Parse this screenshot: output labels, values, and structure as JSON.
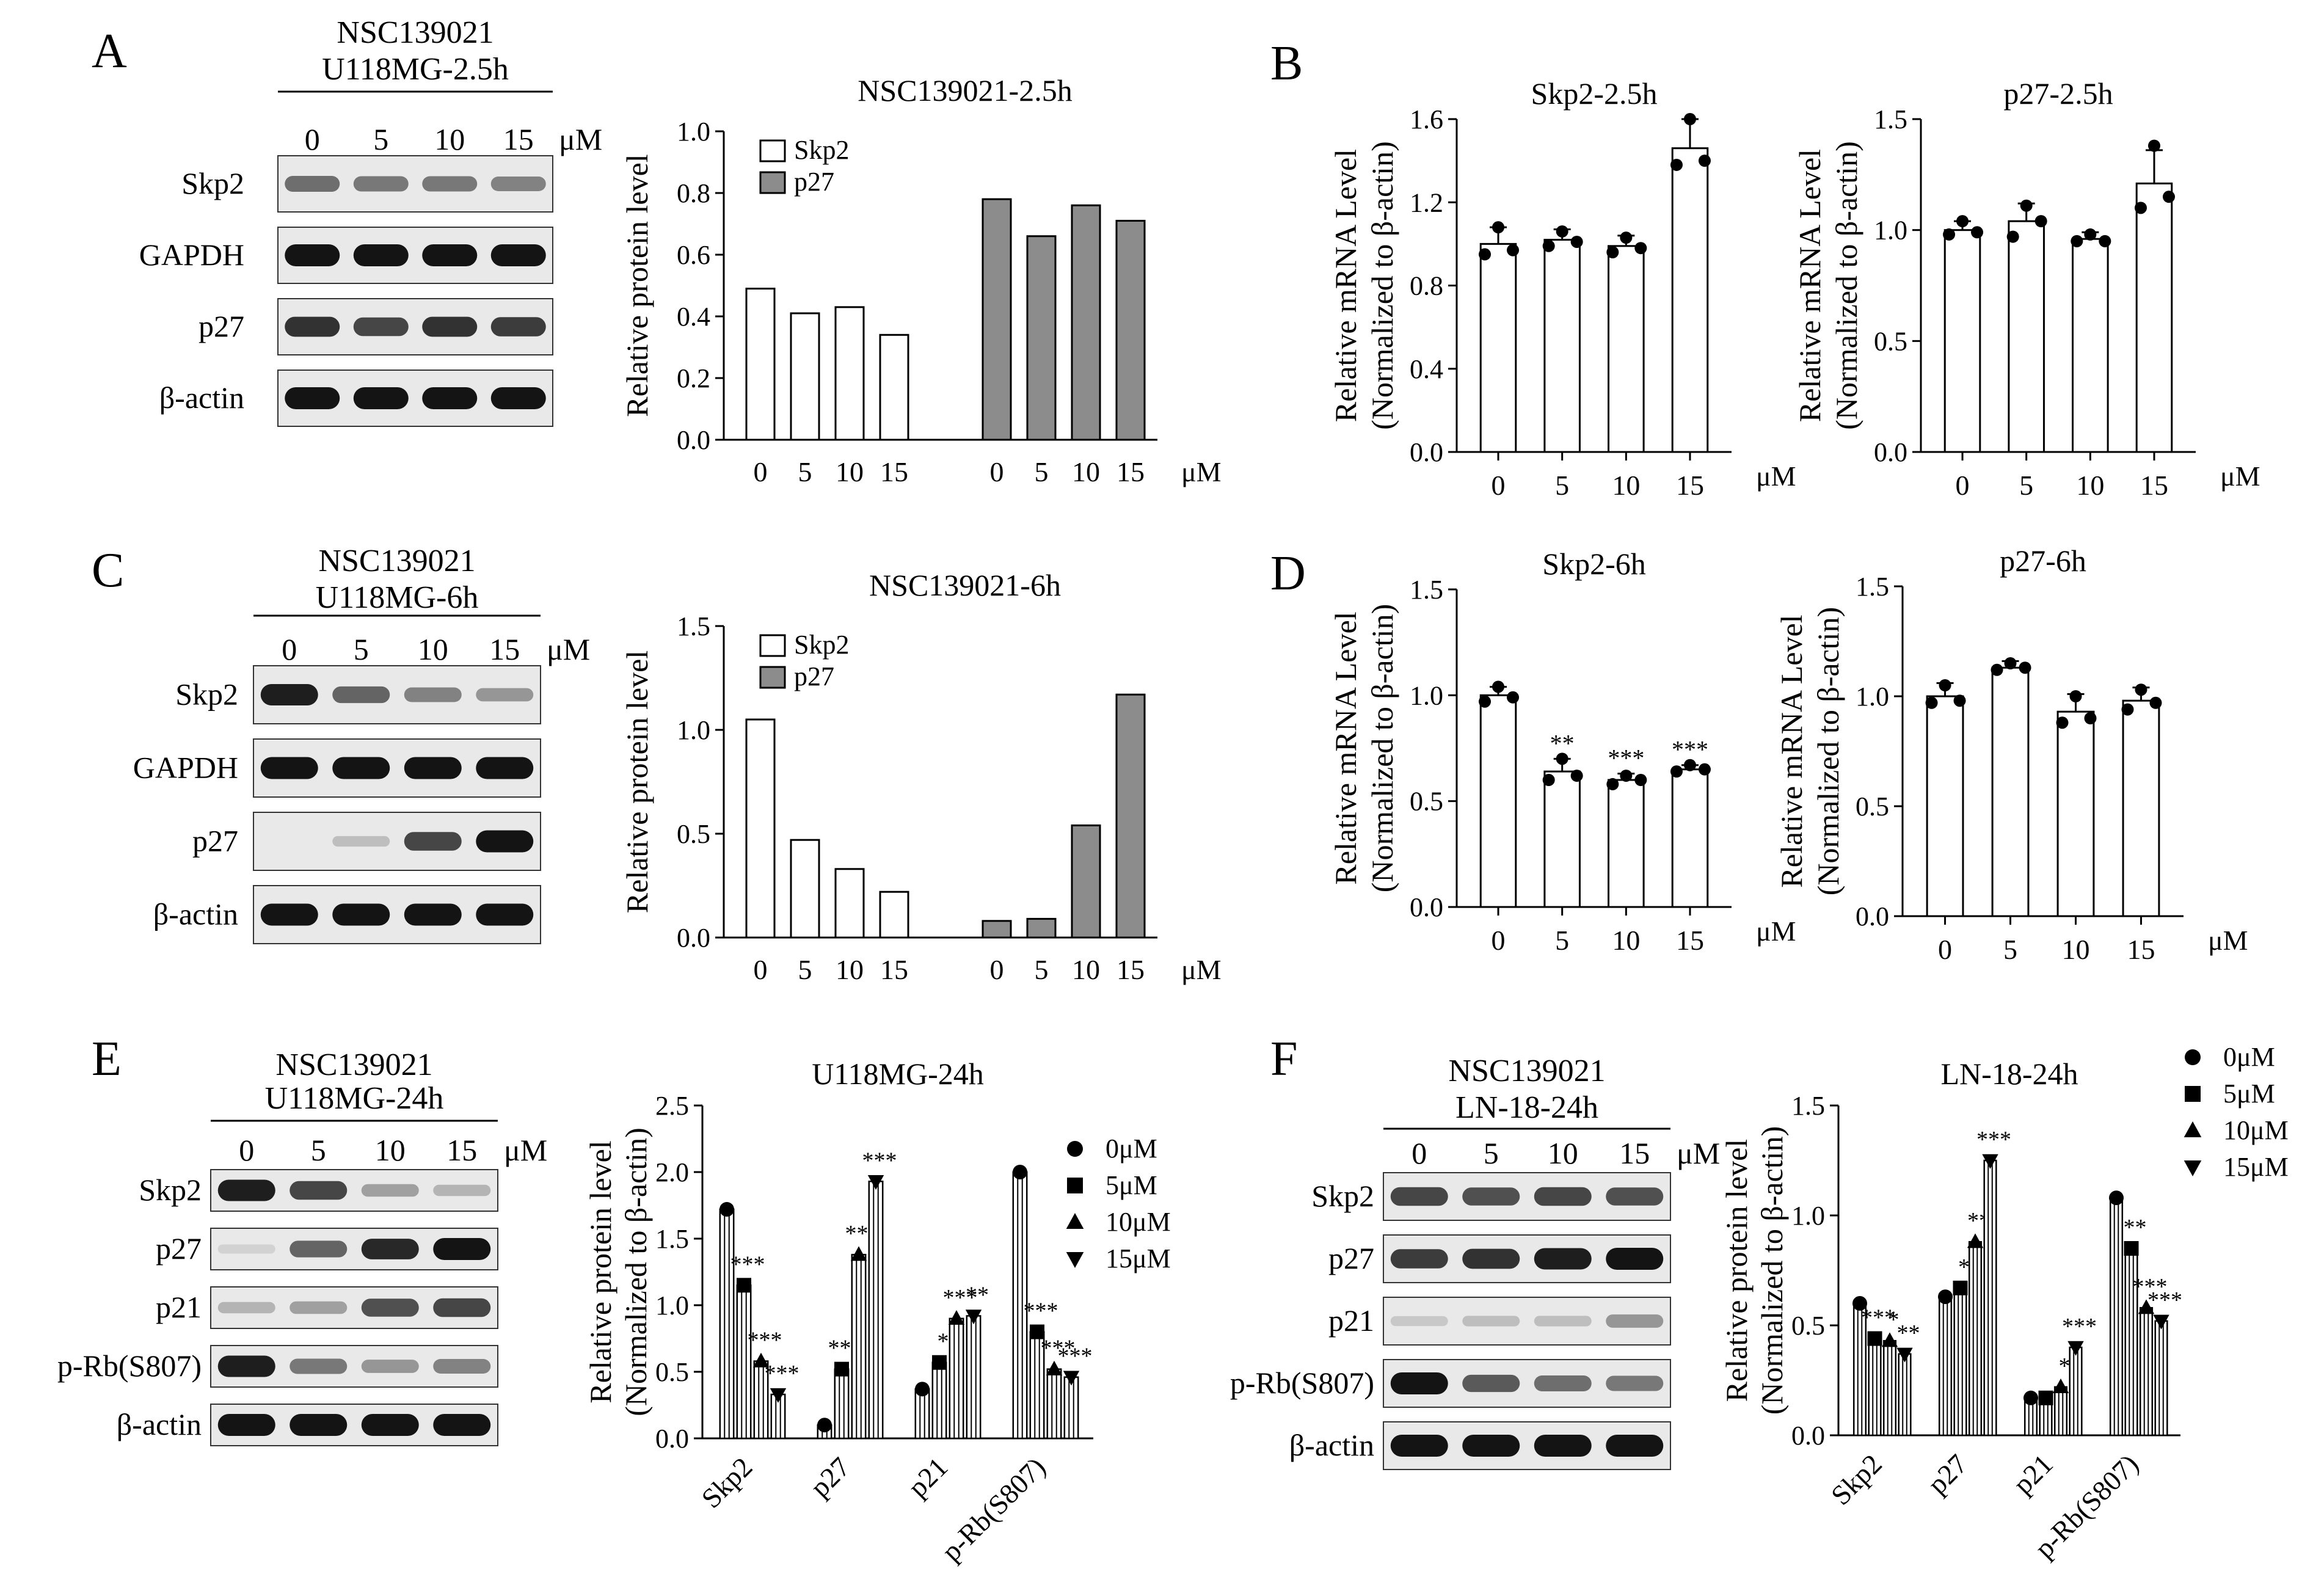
{
  "panel_letters": [
    "A",
    "B",
    "C",
    "D",
    "E",
    "F"
  ],
  "blots": [
    {
      "treatment": "NSC139021",
      "cell": "U118MG-2.5h",
      "doses": [
        "0",
        "5",
        "10",
        "15"
      ],
      "unit": "μM",
      "rows": [
        "Skp2",
        "GAPDH",
        "p27",
        "β-actin"
      ]
    },
    {
      "treatment": "NSC139021",
      "cell": "U118MG-6h",
      "doses": [
        "0",
        "5",
        "10",
        "15"
      ],
      "unit": "μM",
      "rows": [
        "Skp2",
        "GAPDH",
        "p27",
        "β-actin"
      ]
    },
    {
      "treatment": "NSC139021",
      "cell": "U118MG-24h",
      "doses": [
        "0",
        "5",
        "10",
        "15"
      ],
      "unit": "μM",
      "rows": [
        "Skp2",
        "p27",
        "p21",
        "p-Rb(S807)",
        "β-actin"
      ]
    },
    {
      "treatment": "NSC139021",
      "cell": "LN-18-24h",
      "doses": [
        "0",
        "5",
        "10",
        "15"
      ],
      "unit": "μM",
      "rows": [
        "Skp2",
        "p27",
        "p21",
        "p-Rb(S807)",
        "β-actin"
      ]
    }
  ],
  "chart_data": [
    {
      "id": "A-chart",
      "type": "bar",
      "title": "NSC139021-2.5h",
      "ylabel": "Relative protein level",
      "ylim": [
        0,
        1.0
      ],
      "yticks": [
        "0.0",
        "0.2",
        "0.4",
        "0.6",
        "0.8",
        "1.0"
      ],
      "xunit": "μM",
      "categories": [
        "0",
        "5",
        "10",
        "15"
      ],
      "legend": {
        "position": "top-left",
        "entries": [
          {
            "name": "Skp2",
            "color": "#ffffff"
          },
          {
            "name": "p27",
            "color": "#8c8c8c"
          }
        ]
      },
      "series": [
        {
          "name": "Skp2",
          "color": "#ffffff",
          "values": [
            0.49,
            0.41,
            0.43,
            0.34
          ]
        },
        {
          "name": "p27",
          "color": "#8c8c8c",
          "values": [
            0.78,
            0.66,
            0.76,
            0.71
          ]
        }
      ]
    },
    {
      "id": "B-skp2",
      "type": "bar",
      "title": "Skp2-2.5h",
      "ylabel": "Relative mRNA Level",
      "ylabel2": "(Normalized to β-actin)",
      "ylim": [
        0,
        1.6
      ],
      "yticks": [
        "0.0",
        "0.4",
        "0.8",
        "1.2",
        "1.6"
      ],
      "xunit": "μM",
      "categories": [
        "0",
        "5",
        "10",
        "15"
      ],
      "values": [
        1.0,
        1.02,
        0.99,
        1.46
      ],
      "errors": [
        0.08,
        0.05,
        0.05,
        0.14
      ],
      "points": [
        [
          1.08,
          0.95,
          0.97
        ],
        [
          1.06,
          0.99,
          1.01
        ],
        [
          1.03,
          0.96,
          0.98
        ],
        [
          1.6,
          1.38,
          1.4
        ]
      ],
      "stars": [
        "",
        "",
        "",
        ""
      ]
    },
    {
      "id": "B-p27",
      "type": "bar",
      "title": "p27-2.5h",
      "ylabel": "Relative mRNA Level",
      "ylabel2": "(Normalized to β-actin)",
      "ylim": [
        0,
        1.5
      ],
      "yticks": [
        "0.0",
        "0.5",
        "1.0",
        "1.5"
      ],
      "xunit": "μM",
      "categories": [
        "0",
        "5",
        "10",
        "15"
      ],
      "values": [
        1.0,
        1.04,
        0.96,
        1.21
      ],
      "errors": [
        0.04,
        0.08,
        0.03,
        0.15
      ],
      "points": [
        [
          1.04,
          0.98,
          0.99
        ],
        [
          1.11,
          0.97,
          1.04
        ],
        [
          0.98,
          0.95,
          0.95
        ],
        [
          1.38,
          1.1,
          1.15
        ]
      ],
      "stars": [
        "",
        "",
        "",
        ""
      ]
    },
    {
      "id": "C-chart",
      "type": "bar",
      "title": "NSC139021-6h",
      "ylabel": "Relative protein level",
      "ylim": [
        0,
        1.5
      ],
      "yticks": [
        "0.0",
        "0.5",
        "1.0",
        "1.5"
      ],
      "xunit": "μM",
      "categories": [
        "0",
        "5",
        "10",
        "15"
      ],
      "legend": {
        "position": "top-left",
        "entries": [
          {
            "name": "Skp2",
            "color": "#ffffff"
          },
          {
            "name": "p27",
            "color": "#8c8c8c"
          }
        ]
      },
      "series": [
        {
          "name": "Skp2",
          "color": "#ffffff",
          "values": [
            1.05,
            0.47,
            0.33,
            0.22
          ]
        },
        {
          "name": "p27",
          "color": "#8c8c8c",
          "values": [
            0.08,
            0.09,
            0.54,
            1.17
          ]
        }
      ]
    },
    {
      "id": "D-skp2",
      "type": "bar",
      "title": "Skp2-6h",
      "ylabel": "Relative mRNA Level",
      "ylabel2": "(Normalized to β-actin)",
      "ylim": [
        0,
        1.5
      ],
      "yticks": [
        "0.0",
        "0.5",
        "1.0",
        "1.5"
      ],
      "xunit": "μM",
      "categories": [
        "0",
        "5",
        "10",
        "15"
      ],
      "values": [
        1.0,
        0.64,
        0.6,
        0.65
      ],
      "errors": [
        0.04,
        0.06,
        0.03,
        0.02
      ],
      "points": [
        [
          1.04,
          0.97,
          0.99
        ],
        [
          0.7,
          0.6,
          0.62
        ],
        [
          0.62,
          0.58,
          0.6
        ],
        [
          0.67,
          0.64,
          0.65
        ]
      ],
      "stars": [
        "",
        "**",
        "***",
        "***"
      ]
    },
    {
      "id": "D-p27",
      "type": "bar",
      "title": "p27-6h",
      "ylabel": "Relative mRNA Level",
      "ylabel2": "(Normalized to β-actin)",
      "ylim": [
        0,
        1.5
      ],
      "yticks": [
        "0.0",
        "0.5",
        "1.0",
        "1.5"
      ],
      "xunit": "μM",
      "categories": [
        "0",
        "5",
        "10",
        "15"
      ],
      "values": [
        1.0,
        1.13,
        0.93,
        0.98
      ],
      "errors": [
        0.06,
        0.03,
        0.08,
        0.06
      ],
      "points": [
        [
          1.05,
          0.97,
          0.98
        ],
        [
          1.15,
          1.12,
          1.13
        ],
        [
          1.0,
          0.88,
          0.9
        ],
        [
          1.03,
          0.94,
          0.97
        ]
      ],
      "stars": [
        "",
        "",
        "",
        ""
      ]
    },
    {
      "id": "E-chart",
      "type": "bar",
      "title": "U118MG-24h",
      "ylabel": "Relative protein level",
      "ylabel2": "(Normalized to β-actin)",
      "ylim": [
        0,
        2.5
      ],
      "yticks": [
        "0.0",
        "0.5",
        "1.0",
        "1.5",
        "2.0",
        "2.5"
      ],
      "categories": [
        "Skp2",
        "p27",
        "p21",
        "p-Rb(S807)"
      ],
      "legend": {
        "position": "top-right",
        "entries": [
          {
            "name": "0μM",
            "marker": "circle"
          },
          {
            "name": "5μM",
            "marker": "square"
          },
          {
            "name": "10μM",
            "marker": "triangle-up"
          },
          {
            "name": "15μM",
            "marker": "triangle-down"
          }
        ]
      },
      "series": [
        {
          "name": "0μM",
          "values": [
            1.72,
            0.1,
            0.37,
            2.0
          ],
          "stars": [
            "",
            "",
            "",
            ""
          ]
        },
        {
          "name": "5μM",
          "values": [
            1.15,
            0.52,
            0.57,
            0.8
          ],
          "stars": [
            "***",
            "***",
            "*",
            "***"
          ]
        },
        {
          "name": "10μM",
          "values": [
            0.58,
            1.38,
            0.9,
            0.52
          ],
          "stars": [
            "***",
            "***",
            "***",
            "***"
          ]
        },
        {
          "name": "15μM",
          "values": [
            0.33,
            1.93,
            0.92,
            0.46
          ],
          "stars": [
            "***",
            "***",
            "**",
            "***"
          ]
        }
      ]
    },
    {
      "id": "F-chart",
      "type": "bar",
      "title": "LN-18-24h",
      "ylabel": "Relative protein level",
      "ylabel2": "(Normalized to β-actin)",
      "ylim": [
        0,
        1.5
      ],
      "yticks": [
        "0.0",
        "0.5",
        "1.0",
        "1.5"
      ],
      "categories": [
        "Skp2",
        "p27",
        "p21",
        "p-Rb(S807)"
      ],
      "legend": {
        "position": "top-right",
        "entries": [
          {
            "name": "0μM",
            "marker": "circle"
          },
          {
            "name": "5μM",
            "marker": "square"
          },
          {
            "name": "10μM",
            "marker": "triangle-up"
          },
          {
            "name": "15μM",
            "marker": "triangle-down"
          }
        ]
      },
      "series": [
        {
          "name": "0μM",
          "values": [
            0.6,
            0.63,
            0.17,
            1.08
          ],
          "stars": [
            "",
            "",
            "",
            ""
          ]
        },
        {
          "name": "5μM",
          "values": [
            0.44,
            0.67,
            0.17,
            0.85
          ],
          "stars": [
            "***",
            "*",
            "",
            "**"
          ]
        },
        {
          "name": "10μM",
          "values": [
            0.43,
            0.88,
            0.22,
            0.58
          ],
          "stars": [
            "*",
            "**",
            "*",
            "***"
          ]
        },
        {
          "name": "15μM",
          "values": [
            0.37,
            1.25,
            0.4,
            0.52
          ],
          "stars": [
            "**",
            "***",
            "***",
            "***"
          ]
        }
      ]
    }
  ]
}
